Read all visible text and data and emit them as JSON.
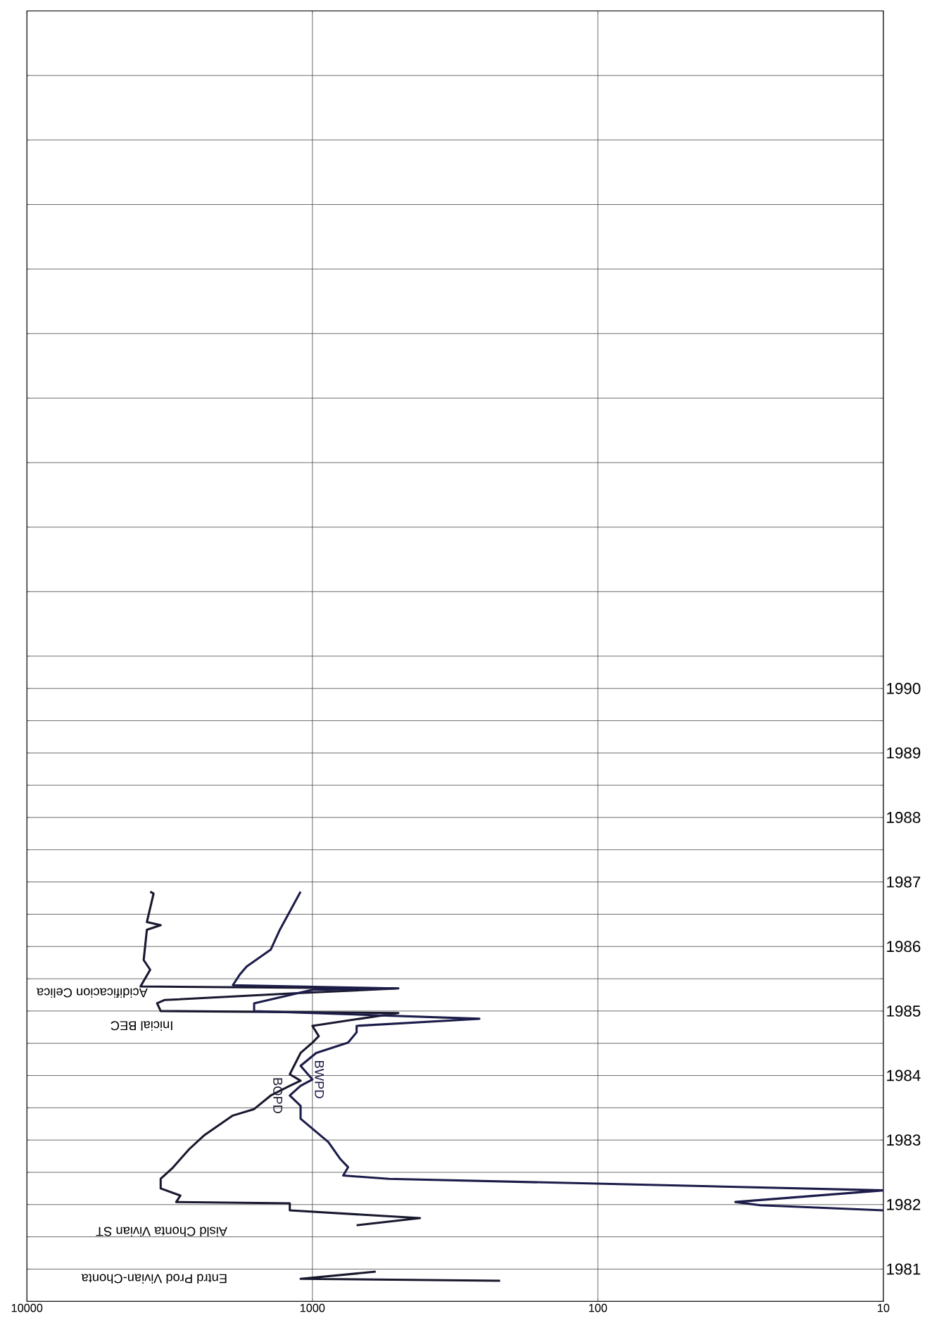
{
  "chart_data": {
    "type": "line",
    "log": "x",
    "grid": true,
    "xlim": [
      10000,
      10
    ],
    "ylim": [
      1981,
      2001
    ],
    "xticks": [
      10000,
      1000,
      100,
      10
    ],
    "yticks": [
      {
        "value": 1981,
        "label": null
      },
      {
        "value": 1981.5,
        "label": "1981"
      },
      {
        "value": 1982,
        "label": null
      },
      {
        "value": 1982.5,
        "label": "1982"
      },
      {
        "value": 1983,
        "label": null
      },
      {
        "value": 1983.5,
        "label": "1983"
      },
      {
        "value": 1984,
        "label": null
      },
      {
        "value": 1984.5,
        "label": "1984"
      },
      {
        "value": 1985,
        "label": null
      },
      {
        "value": 1985.5,
        "label": "1985"
      },
      {
        "value": 1986,
        "label": null
      },
      {
        "value": 1986.5,
        "label": "1986"
      },
      {
        "value": 1987,
        "label": null
      },
      {
        "value": 1987.5,
        "label": "1987"
      },
      {
        "value": 1988,
        "label": null
      },
      {
        "value": 1988.5,
        "label": "1988"
      },
      {
        "value": 1989,
        "label": null
      },
      {
        "value": 1989.5,
        "label": "1989"
      },
      {
        "value": 1990,
        "label": null
      },
      {
        "value": 1990.5,
        "label": "1990"
      },
      {
        "value": 1991,
        "label": null
      },
      {
        "value": 1992,
        "label": null
      },
      {
        "value": 1993,
        "label": null
      },
      {
        "value": 1994,
        "label": null
      },
      {
        "value": 1995,
        "label": null
      },
      {
        "value": 1996,
        "label": null
      },
      {
        "value": 1997,
        "label": null
      },
      {
        "value": 1998,
        "label": null
      },
      {
        "value": 1999,
        "label": null
      },
      {
        "value": 2000,
        "label": null
      },
      {
        "value": 2001,
        "label": null
      }
    ],
    "series": [
      {
        "name": "BOPD",
        "color": "#18182e",
        "x": [
          220,
          1100,
          600,
          null,
          700,
          420,
          1200,
          1200,
          3000,
          2900,
          3400,
          3400,
          3100,
          2700,
          2400,
          1900,
          1600,
          1400,
          1200,
          1100,
          1200,
          1100,
          1000,
          950,
          1000,
          500,
          3400,
          3500,
          3300,
          1100,
          500,
          4000,
          3700,
          3900,
          3800,
          3400,
          3800,
          3600,
          3700
        ],
        "values": [
          1981.32,
          1981.35,
          1981.46,
          null,
          1982.18,
          1982.29,
          1982.41,
          1982.52,
          1982.54,
          1982.64,
          1982.75,
          1982.9,
          1983.06,
          1983.36,
          1983.57,
          1983.88,
          1983.98,
          1984.19,
          1984.34,
          1984.42,
          1984.52,
          1984.85,
          1985.01,
          1985.11,
          1985.27,
          1985.47,
          1985.5,
          1985.62,
          1985.67,
          1985.78,
          1985.85,
          1985.88,
          1986.14,
          1986.29,
          1986.76,
          1986.83,
          1986.88,
          1987.32,
          1987.35
        ]
      },
      {
        "name": "BWPD",
        "color": "#1c1c4a",
        "x": [
          10,
          27,
          33,
          10,
          540,
          780,
          750,
          800,
          880,
          1100,
          1100,
          1200,
          1100,
          1000,
          1100,
          970,
          750,
          700,
          700,
          260,
          1600,
          1600,
          1000,
          510,
          1900,
          1800,
          1700,
          1400,
          1300,
          1100
        ],
        "values": [
          1982.41,
          1982.49,
          1982.54,
          1982.72,
          1982.9,
          1982.95,
          1983.08,
          1983.21,
          1983.47,
          1983.83,
          1984.03,
          1984.19,
          1984.34,
          1984.44,
          1984.65,
          1984.85,
          1985.01,
          1985.17,
          1985.27,
          1985.38,
          1985.5,
          1985.62,
          1985.83,
          1985.85,
          1985.9,
          1986.06,
          1986.19,
          1986.45,
          1986.76,
          1987.35
        ]
      }
    ],
    "annotations": [
      "Entrd Prod Vivian-Chonta",
      "Aisld Chonta Vivian ST",
      "Inicial BEC",
      "Acidificacion Celica"
    ]
  }
}
